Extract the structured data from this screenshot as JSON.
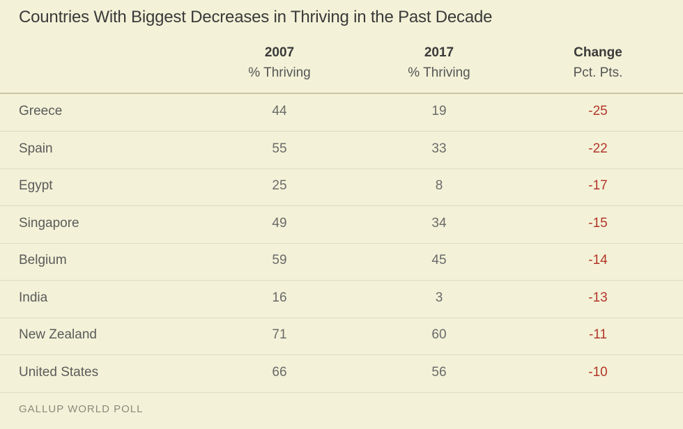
{
  "chart_data": {
    "type": "table",
    "title": "Countries With Biggest Decreases in Thriving in the Past Decade",
    "columns": [
      {
        "heading": "2007",
        "subheading": "% Thriving"
      },
      {
        "heading": "2017",
        "subheading": "% Thriving"
      },
      {
        "heading": "Change",
        "subheading": "Pct. Pts."
      }
    ],
    "rows": [
      {
        "country": "Greece",
        "y2007": "44",
        "y2017": "19",
        "change": "-25"
      },
      {
        "country": "Spain",
        "y2007": "55",
        "y2017": "33",
        "change": "-22"
      },
      {
        "country": "Egypt",
        "y2007": "25",
        "y2017": "8",
        "change": "-17"
      },
      {
        "country": "Singapore",
        "y2007": "49",
        "y2017": "34",
        "change": "-15"
      },
      {
        "country": "Belgium",
        "y2007": "59",
        "y2017": "45",
        "change": "-14"
      },
      {
        "country": "India",
        "y2007": "16",
        "y2017": "3",
        "change": "-13"
      },
      {
        "country": "New Zealand",
        "y2007": "71",
        "y2017": "60",
        "change": "-11"
      },
      {
        "country": "United States",
        "y2007": "66",
        "y2017": "56",
        "change": "-10"
      }
    ],
    "source": "GALLUP WORLD POLL",
    "colors": {
      "background": "#f3f2d8",
      "negative_change": "#b3362a"
    }
  }
}
